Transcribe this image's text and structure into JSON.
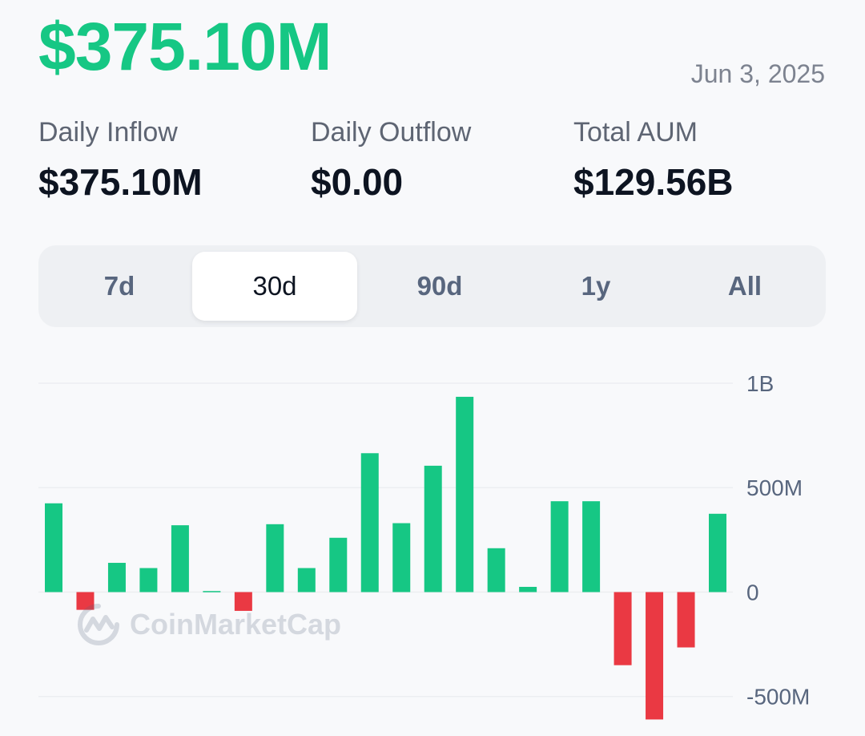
{
  "header": {
    "headline_value": "$375.10M",
    "date": "Jun 3, 2025"
  },
  "stats": [
    {
      "label": "Daily Inflow",
      "value": "$375.10M"
    },
    {
      "label": "Daily Outflow",
      "value": "$0.00"
    },
    {
      "label": "Total AUM",
      "value": "$129.56B"
    }
  ],
  "tabs": {
    "items": [
      "7d",
      "30d",
      "90d",
      "1y",
      "All"
    ],
    "selected": "30d"
  },
  "watermark": "CoinMarketCap",
  "colors": {
    "positive": "#16c784",
    "negative": "#ea3943",
    "axis_text": "#58667e",
    "grid": "#eceef1"
  },
  "chart_data": {
    "type": "bar",
    "y_tick_labels": [
      "1B",
      "500M",
      "0",
      "-500M"
    ],
    "y_ticks": [
      1000000000,
      500000000,
      0,
      -500000000
    ],
    "ylim": [
      -620000000,
      1000000000
    ],
    "grid": true,
    "values": [
      425000000,
      -85000000,
      140000000,
      115000000,
      320000000,
      5000000,
      -90000000,
      325000000,
      115000000,
      260000000,
      665000000,
      330000000,
      605000000,
      935000000,
      210000000,
      25000000,
      435000000,
      435000000,
      -350000000,
      -610000000,
      -265000000,
      375000000
    ]
  }
}
